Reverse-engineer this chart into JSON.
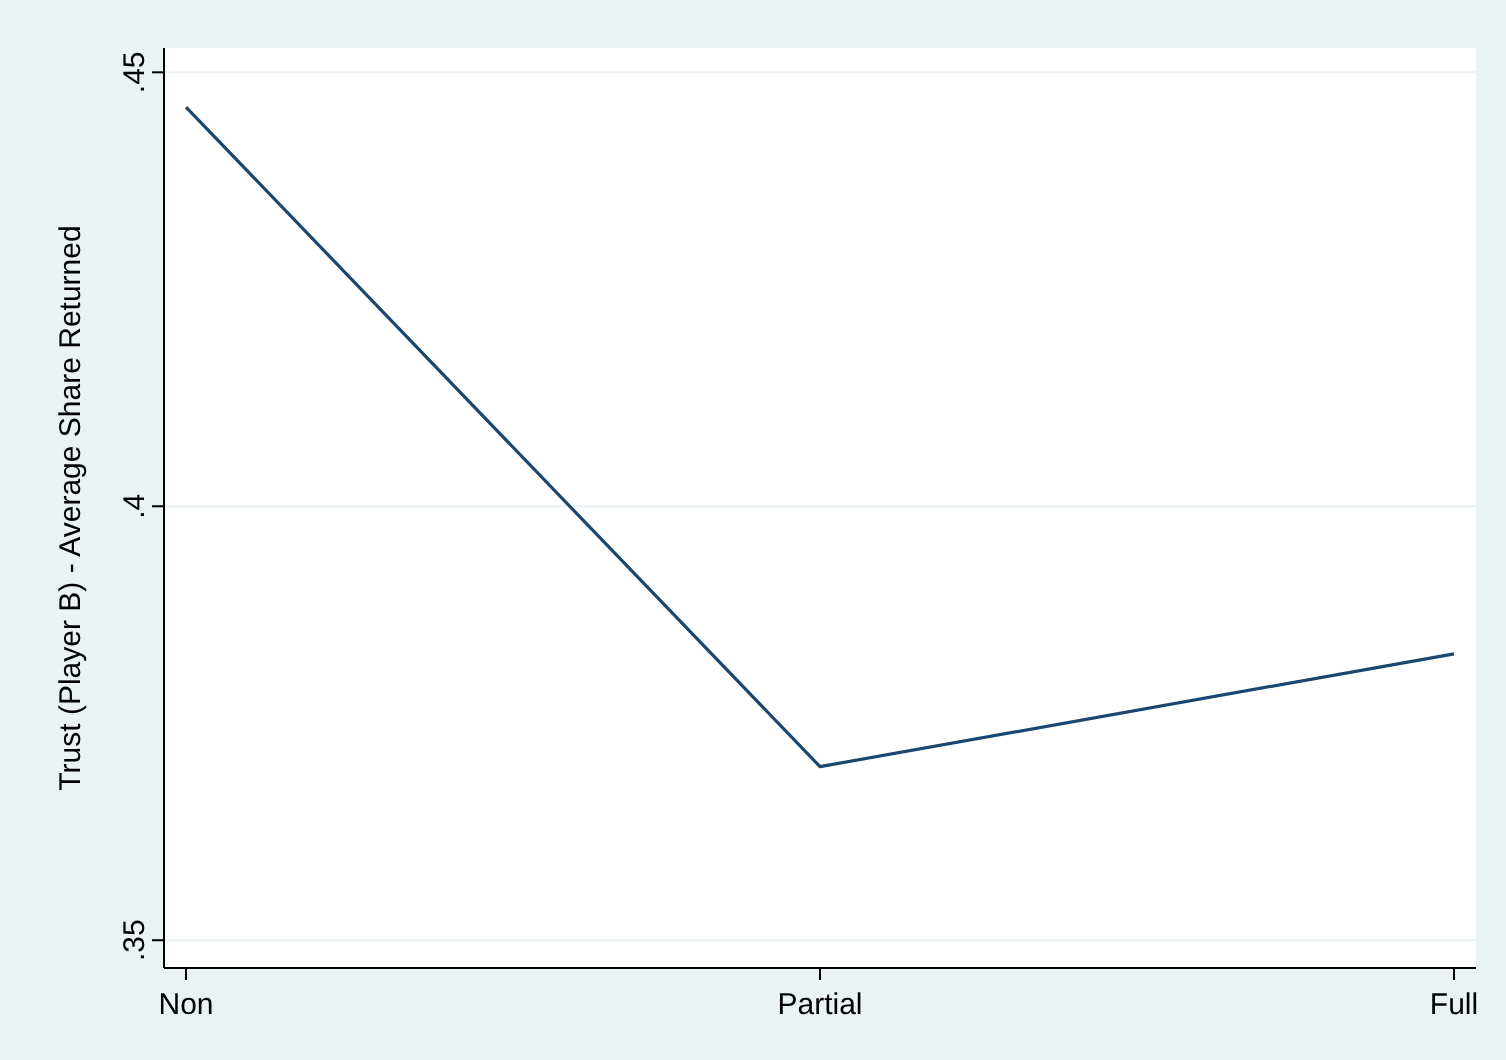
{
  "chart_data": {
    "type": "line",
    "ylabel": "Trust (Player B) - Average Share Returned",
    "categories": [
      "Non",
      "Partial",
      "Full"
    ],
    "series": [
      {
        "color": "#1a476f",
        "values": [
          0.446,
          0.37,
          0.383
        ]
      }
    ],
    "ylim": [
      0.3468,
      0.4528
    ],
    "yticks": [
      {
        "value": 0.35,
        "label": ".35"
      },
      {
        "value": 0.4,
        "label": ".4"
      },
      {
        "value": 0.45,
        "label": ".45"
      }
    ],
    "grid": "y"
  }
}
